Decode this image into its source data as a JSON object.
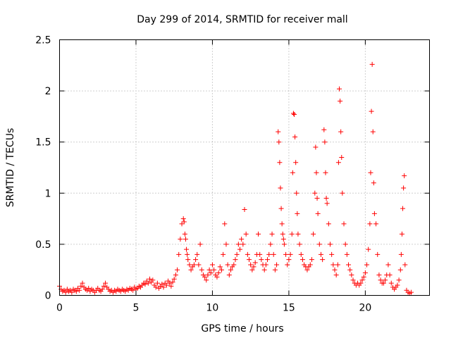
{
  "chart_data": {
    "type": "scatter",
    "title": "Day 299 of 2014, SRMTID for receiver mall",
    "xlabel": "GPS time / hours",
    "ylabel": "SRMTID / TECUs",
    "xlim": [
      0,
      24.2
    ],
    "ylim": [
      0,
      2.5
    ],
    "xticks": [
      0,
      5,
      10,
      15,
      20
    ],
    "xtick_labels": [
      "0",
      "5",
      "10",
      "15",
      "20"
    ],
    "yticks": [
      0,
      0.5,
      1,
      1.5,
      2,
      2.5
    ],
    "ytick_labels": [
      "0",
      "0.5",
      "1",
      "1.5",
      "2",
      "2.5"
    ],
    "grid": true,
    "marker": "+",
    "color": "#ff0000",
    "series": [
      {
        "name": "SRMTID",
        "points": [
          [
            0.0,
            0.09
          ],
          [
            0.1,
            0.06
          ],
          [
            0.2,
            0.04
          ],
          [
            0.3,
            0.05
          ],
          [
            0.4,
            0.03
          ],
          [
            0.5,
            0.06
          ],
          [
            0.6,
            0.04
          ],
          [
            0.7,
            0.05
          ],
          [
            0.8,
            0.03
          ],
          [
            0.9,
            0.06
          ],
          [
            1.0,
            0.05
          ],
          [
            1.1,
            0.04
          ],
          [
            1.2,
            0.07
          ],
          [
            1.3,
            0.05
          ],
          [
            1.4,
            0.09
          ],
          [
            1.5,
            0.12
          ],
          [
            1.6,
            0.08
          ],
          [
            1.7,
            0.06
          ],
          [
            1.8,
            0.05
          ],
          [
            1.9,
            0.07
          ],
          [
            2.0,
            0.04
          ],
          [
            2.1,
            0.06
          ],
          [
            2.2,
            0.05
          ],
          [
            2.3,
            0.03
          ],
          [
            2.4,
            0.05
          ],
          [
            2.5,
            0.07
          ],
          [
            2.6,
            0.05
          ],
          [
            2.7,
            0.04
          ],
          [
            2.8,
            0.06
          ],
          [
            2.9,
            0.09
          ],
          [
            3.0,
            0.12
          ],
          [
            3.1,
            0.08
          ],
          [
            3.2,
            0.06
          ],
          [
            3.3,
            0.04
          ],
          [
            3.4,
            0.05
          ],
          [
            3.5,
            0.03
          ],
          [
            3.6,
            0.05
          ],
          [
            3.7,
            0.04
          ],
          [
            3.8,
            0.06
          ],
          [
            3.9,
            0.05
          ],
          [
            4.0,
            0.04
          ],
          [
            4.1,
            0.06
          ],
          [
            4.2,
            0.05
          ],
          [
            4.3,
            0.04
          ],
          [
            4.4,
            0.06
          ],
          [
            4.5,
            0.05
          ],
          [
            4.6,
            0.07
          ],
          [
            4.7,
            0.06
          ],
          [
            4.8,
            0.05
          ],
          [
            4.9,
            0.08
          ],
          [
            5.0,
            0.06
          ],
          [
            5.1,
            0.07
          ],
          [
            5.2,
            0.09
          ],
          [
            5.3,
            0.08
          ],
          [
            5.4,
            0.1
          ],
          [
            5.5,
            0.12
          ],
          [
            5.6,
            0.11
          ],
          [
            5.7,
            0.14
          ],
          [
            5.8,
            0.12
          ],
          [
            5.9,
            0.16
          ],
          [
            6.0,
            0.13
          ],
          [
            6.1,
            0.15
          ],
          [
            6.2,
            0.1
          ],
          [
            6.3,
            0.08
          ],
          [
            6.4,
            0.12
          ],
          [
            6.5,
            0.07
          ],
          [
            6.6,
            0.09
          ],
          [
            6.7,
            0.11
          ],
          [
            6.8,
            0.08
          ],
          [
            6.9,
            0.12
          ],
          [
            7.0,
            0.1
          ],
          [
            7.1,
            0.14
          ],
          [
            7.2,
            0.12
          ],
          [
            7.3,
            0.09
          ],
          [
            7.4,
            0.13
          ],
          [
            7.5,
            0.16
          ],
          [
            7.6,
            0.2
          ],
          [
            7.7,
            0.25
          ],
          [
            7.8,
            0.4
          ],
          [
            7.9,
            0.55
          ],
          [
            8.0,
            0.7
          ],
          [
            8.1,
            0.75
          ],
          [
            8.15,
            0.72
          ],
          [
            8.2,
            0.6
          ],
          [
            8.25,
            0.55
          ],
          [
            8.3,
            0.45
          ],
          [
            8.35,
            0.4
          ],
          [
            8.4,
            0.35
          ],
          [
            8.5,
            0.3
          ],
          [
            8.6,
            0.25
          ],
          [
            8.7,
            0.28
          ],
          [
            8.8,
            0.3
          ],
          [
            8.9,
            0.35
          ],
          [
            9.0,
            0.4
          ],
          [
            9.1,
            0.3
          ],
          [
            9.2,
            0.5
          ],
          [
            9.3,
            0.25
          ],
          [
            9.4,
            0.2
          ],
          [
            9.5,
            0.18
          ],
          [
            9.6,
            0.15
          ],
          [
            9.7,
            0.2
          ],
          [
            9.8,
            0.25
          ],
          [
            9.9,
            0.22
          ],
          [
            10.0,
            0.3
          ],
          [
            10.1,
            0.25
          ],
          [
            10.2,
            0.2
          ],
          [
            10.3,
            0.18
          ],
          [
            10.4,
            0.22
          ],
          [
            10.5,
            0.28
          ],
          [
            10.6,
            0.25
          ],
          [
            10.7,
            0.4
          ],
          [
            10.8,
            0.7
          ],
          [
            10.9,
            0.5
          ],
          [
            11.0,
            0.3
          ],
          [
            11.1,
            0.2
          ],
          [
            11.2,
            0.25
          ],
          [
            11.3,
            0.28
          ],
          [
            11.4,
            0.3
          ],
          [
            11.5,
            0.35
          ],
          [
            11.6,
            0.4
          ],
          [
            11.7,
            0.5
          ],
          [
            11.8,
            0.45
          ],
          [
            11.9,
            0.55
          ],
          [
            12.0,
            0.5
          ],
          [
            12.1,
            0.84
          ],
          [
            12.2,
            0.6
          ],
          [
            12.3,
            0.4
          ],
          [
            12.4,
            0.35
          ],
          [
            12.5,
            0.3
          ],
          [
            12.6,
            0.25
          ],
          [
            12.7,
            0.28
          ],
          [
            12.8,
            0.32
          ],
          [
            12.9,
            0.4
          ],
          [
            13.0,
            0.6
          ],
          [
            13.1,
            0.4
          ],
          [
            13.2,
            0.35
          ],
          [
            13.3,
            0.3
          ],
          [
            13.4,
            0.25
          ],
          [
            13.5,
            0.3
          ],
          [
            13.6,
            0.35
          ],
          [
            13.7,
            0.4
          ],
          [
            13.8,
            0.5
          ],
          [
            13.9,
            0.6
          ],
          [
            14.0,
            0.4
          ],
          [
            14.1,
            0.25
          ],
          [
            14.2,
            0.3
          ],
          [
            14.3,
            1.6
          ],
          [
            14.35,
            1.5
          ],
          [
            14.4,
            1.3
          ],
          [
            14.45,
            1.05
          ],
          [
            14.5,
            0.85
          ],
          [
            14.55,
            0.7
          ],
          [
            14.6,
            0.6
          ],
          [
            14.65,
            0.55
          ],
          [
            14.7,
            0.5
          ],
          [
            14.8,
            0.4
          ],
          [
            14.9,
            0.3
          ],
          [
            15.0,
            0.35
          ],
          [
            15.1,
            0.4
          ],
          [
            15.2,
            0.6
          ],
          [
            15.25,
            1.2
          ],
          [
            15.3,
            1.78
          ],
          [
            15.35,
            1.77
          ],
          [
            15.4,
            1.55
          ],
          [
            15.45,
            1.3
          ],
          [
            15.5,
            1.0
          ],
          [
            15.55,
            0.8
          ],
          [
            15.6,
            0.6
          ],
          [
            15.7,
            0.5
          ],
          [
            15.8,
            0.4
          ],
          [
            15.9,
            0.35
          ],
          [
            16.0,
            0.3
          ],
          [
            16.1,
            0.28
          ],
          [
            16.2,
            0.25
          ],
          [
            16.3,
            0.28
          ],
          [
            16.4,
            0.3
          ],
          [
            16.5,
            0.35
          ],
          [
            16.6,
            0.6
          ],
          [
            16.7,
            1.0
          ],
          [
            16.75,
            1.45
          ],
          [
            16.8,
            1.2
          ],
          [
            16.85,
            0.95
          ],
          [
            16.9,
            0.8
          ],
          [
            17.0,
            0.5
          ],
          [
            17.1,
            0.4
          ],
          [
            17.2,
            0.35
          ],
          [
            17.3,
            1.62
          ],
          [
            17.35,
            1.5
          ],
          [
            17.4,
            1.2
          ],
          [
            17.45,
            0.95
          ],
          [
            17.5,
            0.9
          ],
          [
            17.6,
            0.7
          ],
          [
            17.7,
            0.5
          ],
          [
            17.8,
            0.4
          ],
          [
            17.9,
            0.3
          ],
          [
            18.0,
            0.25
          ],
          [
            18.1,
            0.2
          ],
          [
            18.2,
            0.3
          ],
          [
            18.25,
            1.3
          ],
          [
            18.3,
            2.02
          ],
          [
            18.35,
            1.9
          ],
          [
            18.4,
            1.6
          ],
          [
            18.45,
            1.35
          ],
          [
            18.5,
            1.0
          ],
          [
            18.6,
            0.7
          ],
          [
            18.7,
            0.5
          ],
          [
            18.8,
            0.4
          ],
          [
            18.9,
            0.3
          ],
          [
            19.0,
            0.25
          ],
          [
            19.1,
            0.2
          ],
          [
            19.2,
            0.15
          ],
          [
            19.3,
            0.12
          ],
          [
            19.4,
            0.1
          ],
          [
            19.5,
            0.12
          ],
          [
            19.6,
            0.1
          ],
          [
            19.7,
            0.12
          ],
          [
            19.8,
            0.15
          ],
          [
            19.9,
            0.18
          ],
          [
            20.0,
            0.22
          ],
          [
            20.1,
            0.3
          ],
          [
            20.2,
            0.45
          ],
          [
            20.3,
            0.7
          ],
          [
            20.35,
            1.2
          ],
          [
            20.4,
            1.8
          ],
          [
            20.45,
            2.26
          ],
          [
            20.5,
            1.6
          ],
          [
            20.55,
            1.1
          ],
          [
            20.6,
            0.8
          ],
          [
            20.7,
            0.7
          ],
          [
            20.8,
            0.4
          ],
          [
            20.9,
            0.2
          ],
          [
            21.0,
            0.15
          ],
          [
            21.1,
            0.12
          ],
          [
            21.2,
            0.12
          ],
          [
            21.3,
            0.15
          ],
          [
            21.4,
            0.2
          ],
          [
            21.5,
            0.3
          ],
          [
            21.6,
            0.2
          ],
          [
            21.7,
            0.12
          ],
          [
            21.8,
            0.08
          ],
          [
            21.9,
            0.06
          ],
          [
            22.0,
            0.08
          ],
          [
            22.1,
            0.1
          ],
          [
            22.2,
            0.15
          ],
          [
            22.3,
            0.25
          ],
          [
            22.35,
            0.4
          ],
          [
            22.4,
            0.6
          ],
          [
            22.45,
            0.85
          ],
          [
            22.5,
            1.05
          ],
          [
            22.55,
            1.17
          ],
          [
            22.6,
            0.3
          ],
          [
            22.7,
            0.05
          ],
          [
            22.8,
            0.03
          ],
          [
            22.9,
            0.02
          ],
          [
            23.0,
            0.03
          ]
        ]
      }
    ]
  }
}
